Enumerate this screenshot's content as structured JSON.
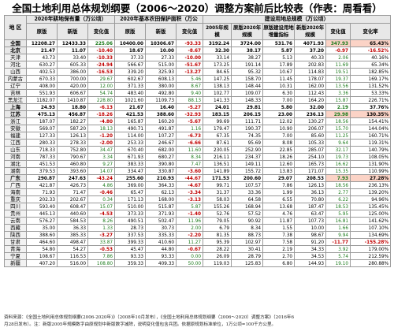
{
  "title": "全国土地利用总体规划纲要（2006～2020）调整方案前后比较表（作表：周看看）",
  "headers": {
    "region": "地 区",
    "group_farmland": "2020年耕地保有量（万公顷）",
    "group_basic": "2020年基本农田保护面积（万公",
    "group_construction": "建设用地总规模（万公顷）",
    "original": "原版",
    "new": "新版",
    "change_value": "变化值",
    "change_rate": "变化率",
    "scale_2005": "2005年规模",
    "original_2020": "原版2020年规模",
    "original_increase": "原版建设用地增量指标",
    "new_2020": "新版2020年规模"
  },
  "rows": [
    {
      "region": "全国",
      "bold": true,
      "f_old": "12208.27",
      "f_new": "12433.33",
      "f_chg": "225.06",
      "b_old": "10400.00",
      "b_new": "10306.67",
      "b_chg": "-93.33",
      "c_2005": "3192.24",
      "c_2020": "3724.00",
      "c_inc": "531.76",
      "c_new": "4071.93",
      "c_chg": "347.93",
      "c_rate": "65.43%"
    },
    {
      "region": "北京",
      "bold": true,
      "f_old": "21.47",
      "f_new": "11.07",
      "f_chg": "-10.40",
      "b_old": "18.67",
      "b_new": "10.00",
      "b_chg": "-8.67",
      "c_2005": "32.30",
      "c_2020": "38.17",
      "c_inc": "5.87",
      "c_new": "37.20",
      "c_chg": "-0.97",
      "c_rate": "-16.52%"
    },
    {
      "region": "天津",
      "bold": false,
      "f_old": "43.73",
      "f_new": "33.40",
      "f_chg": "-10.33",
      "b_old": "37.33",
      "b_new": "27.33",
      "b_chg": "-10.00",
      "c_2005": "33.14",
      "c_2020": "38.27",
      "c_inc": "5.13",
      "c_new": "40.33",
      "c_chg": "2.06",
      "c_rate": "40.16%"
    },
    {
      "region": "河北",
      "bold": false,
      "f_old": "630.27",
      "f_new": "605.33",
      "f_chg": "-24.94",
      "b_old": "566.67",
      "b_new": "515.00",
      "b_chg": "-51.67",
      "c_2005": "173.25",
      "c_2020": "191.14",
      "c_inc": "17.89",
      "c_new": "202.83",
      "c_chg": "11.69",
      "c_rate": "65.34%"
    },
    {
      "region": "山西",
      "bold": false,
      "f_old": "402.53",
      "f_new": "386.00",
      "f_chg": "-16.53",
      "b_old": "339.20",
      "b_new": "325.93",
      "b_chg": "-13.27",
      "c_2005": "84.65",
      "c_2020": "95.32",
      "c_inc": "10.67",
      "c_new": "114.83",
      "c_chg": "19.51",
      "c_rate": "182.85%"
    },
    {
      "region": "内蒙古",
      "bold": false,
      "f_old": "670.33",
      "f_new": "700.00",
      "f_chg": "29.67",
      "b_old": "602.67",
      "b_new": "608.13",
      "b_chg": "5.46",
      "c_2005": "147.25",
      "c_2020": "158.70",
      "c_inc": "11.45",
      "c_new": "178.07",
      "c_chg": "19.37",
      "c_rate": "169.17%"
    },
    {
      "region": "辽宁",
      "bold": false,
      "f_old": "408.00",
      "f_new": "420.00",
      "f_chg": "12.00",
      "b_old": "371.33",
      "b_new": "380.00",
      "b_chg": "8.67",
      "c_2005": "138.13",
      "c_2020": "148.44",
      "c_inc": "10.31",
      "c_new": "162.00",
      "c_chg": "13.56",
      "c_rate": "131.52%"
    },
    {
      "region": "吉林",
      "bold": false,
      "f_old": "551.93",
      "f_new": "606.67",
      "f_chg": "54.74",
      "b_old": "483.40",
      "b_new": "492.80",
      "b_chg": "9.40",
      "c_2005": "102.77",
      "c_2020": "109.07",
      "c_inc": "6.30",
      "c_new": "112.43",
      "c_chg": "3.36",
      "c_rate": "53.33%"
    },
    {
      "region": "黑龙江",
      "bold": false,
      "f_old": "1182.07",
      "f_new": "1410.87",
      "f_chg": "228.80",
      "b_old": "1021.60",
      "b_new": "1109.73",
      "b_chg": "88.13",
      "c_2005": "141.33",
      "c_2020": "148.33",
      "c_inc": "7.00",
      "c_new": "164.20",
      "c_chg": "15.87",
      "c_rate": "226.71%"
    },
    {
      "region": "上海",
      "bold": true,
      "f_old": "24.93",
      "f_new": "18.80",
      "f_chg": "-6.13",
      "b_old": "21.67",
      "b_new": "16.40",
      "b_chg": "-5.27",
      "c_2005": "24.01",
      "c_2020": "29.81",
      "c_inc": "5.80",
      "c_new": "32.00",
      "c_chg": "2.19",
      "c_rate": "37.76%"
    },
    {
      "region": "江苏",
      "bold": true,
      "f_old": "475.13",
      "f_new": "456.87",
      "f_chg": "-18.26",
      "b_old": "421.53",
      "b_new": "388.60",
      "b_chg": "-32.93",
      "c_2005": "183.15",
      "c_2020": "206.15",
      "c_inc": "23.00",
      "c_new": "236.13",
      "c_chg": "29.98",
      "c_rate": "130.35%"
    },
    {
      "region": "浙江",
      "bold": false,
      "f_old": "187.07",
      "f_new": "182.27",
      "f_chg": "-4.80",
      "b_old": "165.87",
      "b_new": "160.20",
      "b_chg": "-5.67",
      "c_2005": "99.69",
      "c_2020": "111.71",
      "c_inc": "12.02",
      "c_new": "130.27",
      "c_chg": "18.56",
      "c_rate": "154.41%"
    },
    {
      "region": "安徽",
      "bold": false,
      "f_old": "569.07",
      "f_new": "587.20",
      "f_chg": "18.13",
      "b_old": "490.71",
      "b_new": "491.87",
      "b_chg": "1.16",
      "c_2005": "179.47",
      "c_2020": "190.37",
      "c_inc": "10.90",
      "c_new": "206.07",
      "c_chg": "15.70",
      "c_rate": "144.04%"
    },
    {
      "region": "福建",
      "bold": false,
      "f_old": "127.33",
      "f_new": "126.13",
      "f_chg": "-1.20",
      "b_old": "114.00",
      "b_new": "107.27",
      "b_chg": "-6.73",
      "c_2005": "67.35",
      "c_2020": "74.35",
      "c_inc": "7.00",
      "c_new": "85.60",
      "c_chg": "11.25",
      "c_rate": "160.71%"
    },
    {
      "region": "江西",
      "bold": false,
      "f_old": "280.33",
      "f_new": "278.33",
      "f_chg": "-2.00",
      "b_old": "253.33",
      "b_new": "246.67",
      "b_chg": "-6.66",
      "c_2005": "87.61",
      "c_2020": "95.69",
      "c_inc": "8.08",
      "c_new": "105.33",
      "c_chg": "9.64",
      "c_rate": "119.31%"
    },
    {
      "region": "山东",
      "bold": false,
      "f_old": "718.33",
      "f_new": "752.80",
      "f_chg": "34.47",
      "b_old": "670.40",
      "b_new": "682.00",
      "b_chg": "11.60",
      "c_2005": "230.05",
      "c_2020": "252.90",
      "c_inc": "22.85",
      "c_new": "285.07",
      "c_chg": "32.17",
      "c_rate": "140.79%"
    },
    {
      "region": "河南",
      "bold": false,
      "f_old": "787.33",
      "f_new": "790.67",
      "f_chg": "3.34",
      "b_old": "671.93",
      "b_new": "680.27",
      "b_chg": "8.34",
      "c_2005": "216.11",
      "c_2020": "234.37",
      "c_inc": "18.26",
      "c_new": "254.10",
      "c_chg": "19.73",
      "c_rate": "108.05%"
    },
    {
      "region": "湖北",
      "bold": false,
      "f_old": "451.53",
      "f_new": "460.80",
      "f_chg": "9.27",
      "b_old": "383.33",
      "b_new": "390.80",
      "b_chg": "7.47",
      "c_2005": "136.51",
      "c_2020": "149.11",
      "c_inc": "12.60",
      "c_new": "165.73",
      "c_chg": "16.62",
      "c_rate": "131.90%"
    },
    {
      "region": "湖南",
      "bold": false,
      "f_old": "379.53",
      "f_new": "393.60",
      "f_chg": "14.07",
      "b_old": "334.47",
      "b_new": "330.87",
      "b_chg": "-3.60",
      "c_2005": "141.89",
      "c_2020": "155.72",
      "c_inc": "13.83",
      "c_new": "171.07",
      "c_chg": "15.35",
      "c_rate": "110.99%"
    },
    {
      "region": "广东",
      "bold": true,
      "f_old": "290.87",
      "f_new": "247.63",
      "f_chg": "-43.24",
      "b_old": "255.60",
      "b_new": "210.93",
      "b_chg": "-44.67",
      "c_2005": "171.53",
      "c_2020": "200.60",
      "c_inc": "29.07",
      "c_new": "208.53",
      "c_chg": "7.93",
      "c_rate": "27.28%"
    },
    {
      "region": "广西",
      "bold": false,
      "f_old": "421.87",
      "f_new": "426.73",
      "f_chg": "4.86",
      "b_old": "369.00",
      "b_new": "364.33",
      "b_chg": "-4.67",
      "c_2005": "99.71",
      "c_2020": "107.57",
      "c_inc": "7.86",
      "c_new": "126.13",
      "c_chg": "18.56",
      "c_rate": "236.13%"
    },
    {
      "region": "海南",
      "bold": false,
      "f_old": "71.93",
      "f_new": "71.47",
      "f_chg": "-0.46",
      "b_old": "65.47",
      "b_new": "62.13",
      "b_chg": "-3.34",
      "c_2005": "31.37",
      "c_2020": "33.36",
      "c_inc": "1.99",
      "c_new": "36.13",
      "c_chg": "2.77",
      "c_rate": "139.20%"
    },
    {
      "region": "重庆",
      "bold": false,
      "f_old": "202.33",
      "f_new": "202.67",
      "f_chg": "0.34",
      "b_old": "171.13",
      "b_new": "168.00",
      "b_chg": "-3.13",
      "c_2005": "58.03",
      "c_2020": "64.58",
      "c_inc": "6.55",
      "c_new": "70.80",
      "c_chg": "6.22",
      "c_rate": "94.96%"
    },
    {
      "region": "四川",
      "bold": false,
      "f_old": "593.40",
      "f_new": "608.47",
      "f_chg": "15.07",
      "b_old": "510.00",
      "b_new": "515.87",
      "b_chg": "5.87",
      "c_2005": "155.26",
      "c_2020": "168.94",
      "c_inc": "13.68",
      "c_new": "187.47",
      "c_chg": "18.53",
      "c_rate": "135.45%"
    },
    {
      "region": "贵州",
      "bold": false,
      "f_old": "445.13",
      "f_new": "440.60",
      "f_chg": "-4.53",
      "b_old": "373.33",
      "b_new": "371.93",
      "b_chg": "-1.40",
      "c_2005": "52.76",
      "c_2020": "57.52",
      "c_inc": "4.76",
      "c_new": "63.47",
      "c_chg": "5.95",
      "c_rate": "125.00%"
    },
    {
      "region": "云南",
      "bold": false,
      "f_old": "576.27",
      "f_new": "584.53",
      "f_chg": "8.26",
      "b_old": "490.51",
      "b_new": "502.47",
      "b_chg": "11.96",
      "c_2005": "79.05",
      "c_2020": "90.92",
      "c_inc": "11.87",
      "c_new": "107.73",
      "c_chg": "16.81",
      "c_rate": "141.62%"
    },
    {
      "region": "西藏",
      "bold": false,
      "f_old": "35.00",
      "f_new": "36.33",
      "f_chg": "1.33",
      "b_old": "28.73",
      "b_new": "30.73",
      "b_chg": "2.00",
      "c_2005": "6.79",
      "c_2020": "8.34",
      "c_inc": "1.55",
      "c_new": "10.00",
      "c_chg": "1.66",
      "c_rate": "107.10%"
    },
    {
      "region": "陕西",
      "bold": false,
      "f_old": "388.60",
      "f_new": "385.33",
      "f_chg": "-3.27",
      "b_old": "337.53",
      "b_new": "335.33",
      "b_chg": "-2.20",
      "c_2005": "81.35",
      "c_2020": "88.73",
      "c_inc": "7.38",
      "c_new": "98.67",
      "c_chg": "9.94",
      "c_rate": "134.69%"
    },
    {
      "region": "甘肃",
      "bold": false,
      "f_old": "464.60",
      "f_new": "498.47",
      "f_chg": "33.87",
      "b_old": "399.33",
      "b_new": "410.60",
      "b_chg": "11.27",
      "c_2005": "95.39",
      "c_2020": "102.97",
      "c_inc": "7.58",
      "c_new": "91.20",
      "c_chg": "-11.77",
      "c_rate": "-155.28%"
    },
    {
      "region": "青海",
      "bold": false,
      "f_old": "54.80",
      "f_new": "54.27",
      "f_chg": "-0.53",
      "b_old": "45.47",
      "b_new": "44.80",
      "b_chg": "-0.67",
      "c_2005": "28.22",
      "c_2020": "30.41",
      "c_inc": "2.19",
      "c_new": "34.33",
      "c_chg": "3.92",
      "c_rate": "179.00%"
    },
    {
      "region": "宁夏",
      "bold": false,
      "f_old": "108.67",
      "f_new": "116.53",
      "f_chg": "7.86",
      "b_old": "93.33",
      "b_new": "93.33",
      "b_chg": "0.00",
      "c_2005": "26.09",
      "c_2020": "28.79",
      "c_inc": "2.70",
      "c_new": "34.53",
      "c_chg": "5.74",
      "c_rate": "212.59%"
    },
    {
      "region": "新疆",
      "bold": false,
      "f_old": "407.20",
      "f_new": "516.00",
      "f_chg": "108.80",
      "b_old": "359.33",
      "b_new": "409.33",
      "b_chg": "50.00",
      "c_2005": "119.03",
      "c_2020": "125.83",
      "c_inc": "6.80",
      "c_new": "144.93",
      "c_chg": "19.10",
      "c_rate": "280.88%"
    }
  ],
  "footnotes": {
    "line1": "资料来源：《全国土地利用总体规划纲要(2006-2020年)》（2008年10月发布），《全国土地利用总体规划纲要（2006～2020）调整方案》（2016年6",
    "line2": "月28日发布）。注：新版2005年规模数字由原规划中新版数字减除，说明变化值包含兵团。依据原规划标准单位，1万公顷=100千方公里。"
  }
}
